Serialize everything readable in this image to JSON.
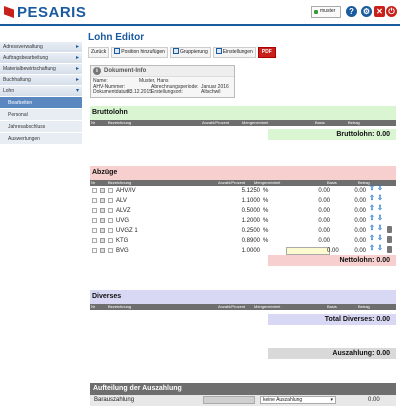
{
  "app": {
    "logo": "PESARIS",
    "user_name": "muster"
  },
  "sidebar": {
    "items": [
      {
        "label": "Adressverwaltung"
      },
      {
        "label": "Auftragsbearbeitung"
      },
      {
        "label": "Materialbewirtschaftung"
      },
      {
        "label": "Buchhaltung"
      },
      {
        "label": "Lohn"
      }
    ],
    "sub_items": [
      {
        "label": "Bearbeiten",
        "active": true
      },
      {
        "label": "Personal"
      },
      {
        "label": "Jahresabschluss"
      },
      {
        "label": "Auswertungen"
      }
    ]
  },
  "page": {
    "title": "Lohn Editor"
  },
  "toolbar": {
    "back": "Zurück",
    "add_position": "Position hinzufügen",
    "grouping": "Gruppierung",
    "settings": "Einstellungen",
    "pdf": "PDF"
  },
  "doc_info": {
    "title": "Dokument-Info",
    "name_label": "Name:",
    "name_value": "Muster, Hans",
    "ahv_label": "AHV-Nummer:",
    "period_label": "Abrechnungsperiode:",
    "period_value": "Januar 2016",
    "date_label": "Dokumentdatum:",
    "date_value": "23.12.2015",
    "creator_label": "Erstellungsort:",
    "creator_value": "Altschwil"
  },
  "columns": {
    "nr": "Nr",
    "bez": "Bezeichnung",
    "anzahl": "Anzahl/Prozent",
    "menge": "Mengeneinheit",
    "basis": "Basis",
    "betrag": "Betrag"
  },
  "bruttolohn": {
    "title": "Bruttolohn",
    "total": "Bruttolohn: 0.00"
  },
  "abzuege": {
    "title": "Abzüge",
    "rows": [
      {
        "name": "AHV/IV",
        "rate": "5.1250",
        "unit": "%",
        "basis": "0.00",
        "betrag": "0.00"
      },
      {
        "name": "ALV",
        "rate": "1.1000",
        "unit": "%",
        "basis": "0.00",
        "betrag": "0.00"
      },
      {
        "name": "ALVZ",
        "rate": "0.5000",
        "unit": "%",
        "basis": "0.00",
        "betrag": "0.00"
      },
      {
        "name": "UVG",
        "rate": "1.2000",
        "unit": "%",
        "basis": "0.00",
        "betrag": "0.00"
      },
      {
        "name": "UVGZ 1",
        "rate": "0.2500",
        "unit": "%",
        "basis": "0.00",
        "betrag": "0.00"
      },
      {
        "name": "KTG",
        "rate": "0.8900",
        "unit": "%",
        "basis": "0.00",
        "betrag": "0.00"
      },
      {
        "name": "BVG",
        "rate": "1.0000",
        "unit": "",
        "basis": "0.00",
        "betrag": "0.00"
      }
    ],
    "total": "Nettolohn: 0.00"
  },
  "diverses": {
    "title": "Diverses",
    "total": "Total Diverses: 0.00"
  },
  "auszahlung": {
    "total": "Auszahlung: 0.00"
  },
  "aufteilung": {
    "title": "Aufteilung der Auszahlung",
    "label": "Barauszahlung",
    "select_value": "keine Auszahlung",
    "amount": "0.00"
  },
  "colors": {
    "brutto": "#d9f5d2",
    "abzuege": "#f7cfcf",
    "diverses": "#d8d8f4",
    "auszahlung": "#d9d9d9",
    "accent": "#1a5a9e"
  }
}
